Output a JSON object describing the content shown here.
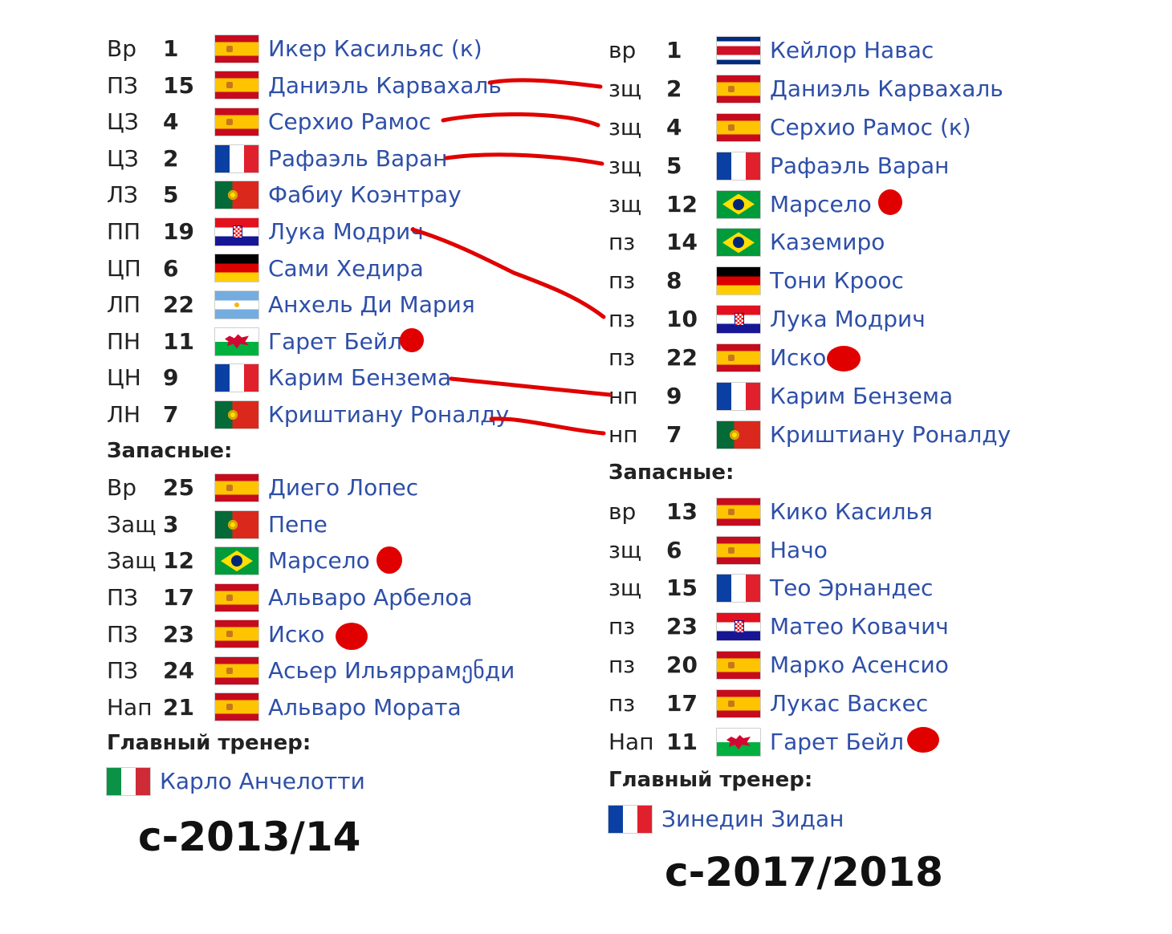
{
  "left": {
    "starters": [
      {
        "pos": "Вр",
        "num": "1",
        "flag": "es",
        "name": "Икер Касильяс (к)"
      },
      {
        "pos": "ПЗ",
        "num": "15",
        "flag": "es",
        "name": "Даниэль Карвахаль"
      },
      {
        "pos": "ЦЗ",
        "num": "4",
        "flag": "es",
        "name": "Серхио Рамос"
      },
      {
        "pos": "ЦЗ",
        "num": "2",
        "flag": "fr",
        "name": "Рафаэль Варан"
      },
      {
        "pos": "ЛЗ",
        "num": "5",
        "flag": "pt",
        "name": "Фабиу Коэнтрау"
      },
      {
        "pos": "ПП",
        "num": "19",
        "flag": "hr",
        "name": "Лука Модрич"
      },
      {
        "pos": "ЦП",
        "num": "6",
        "flag": "de",
        "name": "Сами Хедира"
      },
      {
        "pos": "ЛП",
        "num": "22",
        "flag": "ar",
        "name": "Анхель Ди Мария"
      },
      {
        "pos": "ПН",
        "num": "11",
        "flag": "wa",
        "name": "Гарет Бейл"
      },
      {
        "pos": "ЦН",
        "num": "9",
        "flag": "fr",
        "name": "Карим Бензема"
      },
      {
        "pos": "ЛН",
        "num": "7",
        "flag": "pt",
        "name": "Криштиану Роналду"
      }
    ],
    "subs_heading": "Запасные:",
    "subs": [
      {
        "pos": "Вр",
        "num": "25",
        "flag": "es",
        "name": "Диего Лопес"
      },
      {
        "pos": "Защ",
        "num": "3",
        "flag": "pt",
        "name": "Пепе"
      },
      {
        "pos": "Защ",
        "num": "12",
        "flag": "br",
        "name": "Марсело"
      },
      {
        "pos": "ПЗ",
        "num": "17",
        "flag": "es",
        "name": "Альваро Арбелоа"
      },
      {
        "pos": "ПЗ",
        "num": "23",
        "flag": "es",
        "name": "Иско"
      },
      {
        "pos": "ПЗ",
        "num": "24",
        "flag": "es",
        "name": "Асьер Ильяррамენди"
      },
      {
        "pos": "Нап",
        "num": "21",
        "flag": "es",
        "name": "Альваро Мората"
      }
    ],
    "coach_heading": "Главный тренер:",
    "coach": {
      "flag": "it",
      "name": "Карло Анчелотти"
    },
    "season": "с-2013/14"
  },
  "right": {
    "starters": [
      {
        "pos": "вр",
        "num": "1",
        "flag": "cr",
        "name": "Кейлор Навас"
      },
      {
        "pos": "зщ",
        "num": "2",
        "flag": "es",
        "name": "Даниэль Карвахаль"
      },
      {
        "pos": "зщ",
        "num": "4",
        "flag": "es",
        "name": "Серхио Рамос (к)"
      },
      {
        "pos": "зщ",
        "num": "5",
        "flag": "fr",
        "name": "Рафаэль Варан"
      },
      {
        "pos": "зщ",
        "num": "12",
        "flag": "br",
        "name": "Марсело"
      },
      {
        "pos": "пз",
        "num": "14",
        "flag": "br",
        "name": "Каземиро"
      },
      {
        "pos": "пз",
        "num": "8",
        "flag": "de",
        "name": "Тони Кроос"
      },
      {
        "pos": "пз",
        "num": "10",
        "flag": "hr",
        "name": "Лука Модрич"
      },
      {
        "pos": "пз",
        "num": "22",
        "flag": "es",
        "name": "Иско"
      },
      {
        "pos": "нп",
        "num": "9",
        "flag": "fr",
        "name": "Карим Бензема"
      },
      {
        "pos": "нп",
        "num": "7",
        "flag": "pt",
        "name": "Криштиану Роналду"
      }
    ],
    "subs_heading": "Запасные:",
    "subs": [
      {
        "pos": "вр",
        "num": "13",
        "flag": "es",
        "name": "Кико Касилья"
      },
      {
        "pos": "зщ",
        "num": "6",
        "flag": "es",
        "name": "Начо"
      },
      {
        "pos": "зщ",
        "num": "15",
        "flag": "fr",
        "name": "Тео Эрнандес"
      },
      {
        "pos": "пз",
        "num": "23",
        "flag": "hr",
        "name": "Матео Ковачич"
      },
      {
        "pos": "пз",
        "num": "20",
        "flag": "es",
        "name": "Марко Асенсио"
      },
      {
        "pos": "пз",
        "num": "17",
        "flag": "es",
        "name": "Лукас Васкес"
      },
      {
        "pos": "Нап",
        "num": "11",
        "flag": "wa",
        "name": "Гарет Бейл"
      }
    ],
    "coach_heading": "Главный тренер:",
    "coach": {
      "flag": "fr",
      "name": "Зинедин Зидан"
    },
    "season": "с-2017/2018"
  },
  "colors": {
    "link": "#2e4fa8",
    "annotation": "#e00000",
    "text": "#222222"
  }
}
